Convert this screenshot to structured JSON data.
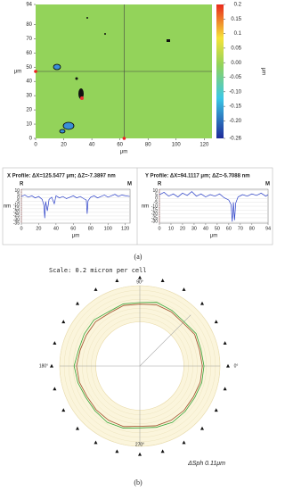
{
  "chart_data": [
    {
      "type": "heatmap",
      "xlabel": "μm",
      "ylabel": "μm",
      "color": "#93d35a",
      "xlim": [
        0,
        125.5
      ],
      "xticks": [
        0,
        20,
        40,
        60,
        80,
        100,
        120
      ],
      "ylim": [
        0,
        94
      ],
      "yticks": [
        0,
        10,
        20,
        30,
        40,
        50,
        60,
        70,
        80,
        94
      ],
      "cursor": [
        63,
        47
      ],
      "colorbar": {
        "label": "μm",
        "lim": [
          -0.26,
          0.2
        ],
        "ticks": [
          0.2,
          0.15,
          0.1,
          0.05,
          {
            "value": 0,
            "label": "0.00"
          },
          -0.05,
          {
            "value": -0.1,
            "label": "-0.10"
          },
          -0.15,
          {
            "value": -0.2,
            "label": "-0.20"
          },
          -0.26
        ]
      }
    },
    {
      "type": "line",
      "title": "X Profile: ΔX=125.5477 μm; ΔZ=-7.3897 nm",
      "left_marker": "R",
      "right_marker": "M",
      "xlabel": "μm",
      "ylabel": "nm",
      "color": "#2a3fc8",
      "x": [
        0,
        4,
        8,
        12,
        16,
        20,
        24,
        26,
        27,
        28,
        30,
        32,
        35,
        38,
        40,
        44,
        48,
        52,
        56,
        60,
        64,
        68,
        72,
        75,
        76,
        77,
        80,
        84,
        88,
        92,
        96,
        100,
        104,
        108,
        112,
        116,
        120,
        125
      ],
      "values": [
        2,
        4,
        1,
        3,
        0,
        2,
        -2,
        -10,
        -28,
        -5,
        -18,
        -2,
        1,
        -8,
        3,
        0,
        2,
        -1,
        1,
        3,
        0,
        2,
        -1,
        -3,
        -22,
        -4,
        1,
        3,
        0,
        2,
        4,
        1,
        3,
        5,
        2,
        4,
        3,
        2
      ],
      "xlim": [
        0,
        125.5
      ],
      "xticks": [
        0,
        20,
        40,
        60,
        80,
        100,
        120
      ],
      "ylim": [
        -35,
        12
      ],
      "yticks": [
        10,
        5,
        0,
        -5,
        -10,
        -15,
        -20,
        -25,
        -30,
        -35
      ]
    },
    {
      "type": "line",
      "title": "Y Profile: ΔX=94.1117 μm; ΔZ=-5.7088 nm",
      "left_marker": "R",
      "right_marker": "M",
      "xlabel": "μm",
      "ylabel": "nm",
      "color": "#2a3fc8",
      "x": [
        0,
        4,
        8,
        12,
        16,
        20,
        24,
        28,
        32,
        36,
        40,
        44,
        48,
        52,
        56,
        60,
        62,
        63,
        64,
        65,
        66,
        68,
        72,
        76,
        80,
        84,
        88,
        92,
        94
      ],
      "values": [
        5,
        8,
        3,
        6,
        2,
        7,
        4,
        9,
        3,
        6,
        2,
        5,
        3,
        6,
        1,
        -2,
        -8,
        -30,
        -5,
        -28,
        -6,
        2,
        5,
        3,
        6,
        4,
        7,
        3,
        5
      ],
      "xlim": [
        0,
        94
      ],
      "xticks": [
        0,
        10,
        20,
        30,
        40,
        50,
        60,
        70,
        80,
        94
      ],
      "ylim": [
        -32,
        12
      ],
      "yticks": [
        10,
        5,
        0,
        -5,
        -10,
        -15,
        -20,
        -25,
        -30
      ]
    },
    {
      "type": "polar",
      "title": "Scale: 0.2 micron per cell",
      "annotation": "ΔSph 0.11μm",
      "angle_labels": [
        {
          "value": 90,
          "label": "90°"
        },
        {
          "value": 180,
          "label": "180°"
        },
        {
          "value": 0,
          "label": "0°"
        },
        {
          "value": 270,
          "label": "270°"
        }
      ],
      "rlim": [
        0,
        1
      ],
      "theta": [
        0,
        15,
        30,
        45,
        60,
        75,
        90,
        105,
        120,
        135,
        150,
        165,
        180,
        195,
        210,
        225,
        240,
        255,
        270,
        285,
        300,
        315,
        330,
        345
      ],
      "series": [
        {
          "color": "#3aa53a",
          "values": [
            0.8,
            0.79,
            0.81,
            0.78,
            0.8,
            0.82,
            0.79,
            0.8,
            0.78,
            0.81,
            0.8,
            0.79,
            0.82,
            0.8,
            0.78,
            0.79,
            0.81,
            0.8,
            0.77,
            0.79,
            0.81,
            0.8,
            0.79,
            0.8
          ]
        },
        {
          "color": "#a0522d",
          "values": [
            0.78,
            0.77,
            0.79,
            0.76,
            0.78,
            0.79,
            0.77,
            0.78,
            0.76,
            0.78,
            0.77,
            0.77,
            0.79,
            0.78,
            0.76,
            0.77,
            0.78,
            0.78,
            0.75,
            0.77,
            0.78,
            0.78,
            0.77,
            0.78
          ]
        }
      ]
    }
  ],
  "captions": [
    "(a)",
    "(b)"
  ]
}
